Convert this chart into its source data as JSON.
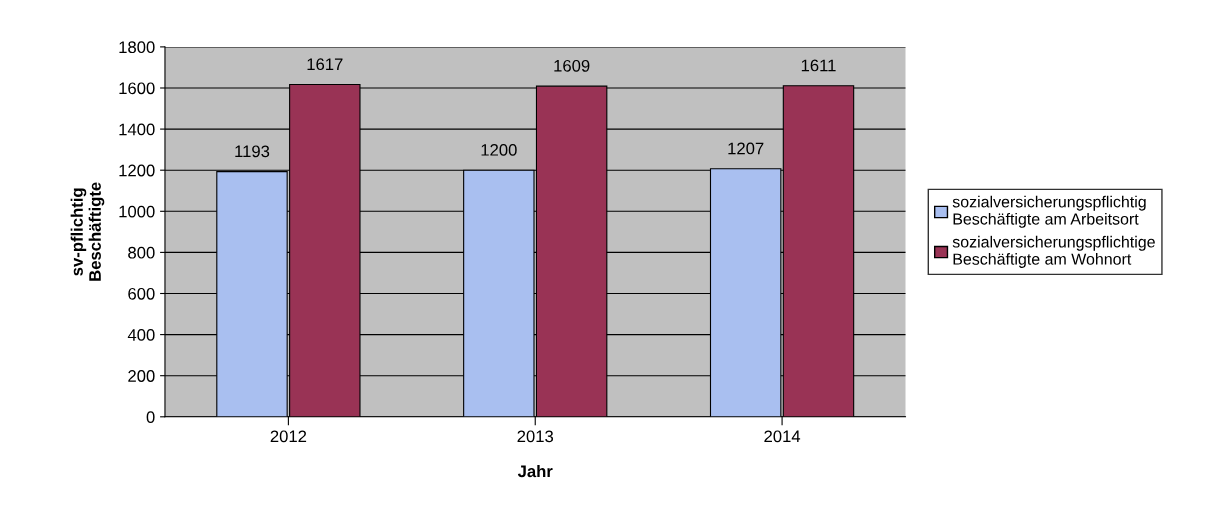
{
  "chart_data": {
    "type": "bar",
    "xlabel": "Jahr",
    "ylabel": "sv-pflichtig\nBeschäftigte",
    "categories": [
      "2012",
      "2013",
      "2014"
    ],
    "series": [
      {
        "name": "sozialversicherungspflichtig\nBeschäftigte am Arbeitsort",
        "color": "#a9bff0",
        "values": [
          1193,
          1200,
          1207
        ]
      },
      {
        "name": "sozialversicherungspflichtige\nBeschäftigte am Wohnort",
        "color": "#993355",
        "values": [
          1617,
          1609,
          1611
        ]
      }
    ],
    "ylim": [
      0,
      1800
    ],
    "yticks": [
      0,
      200,
      400,
      600,
      800,
      1000,
      1200,
      1400,
      1600,
      1800
    ],
    "grid": "y",
    "legend": "right",
    "data_labels": true
  }
}
